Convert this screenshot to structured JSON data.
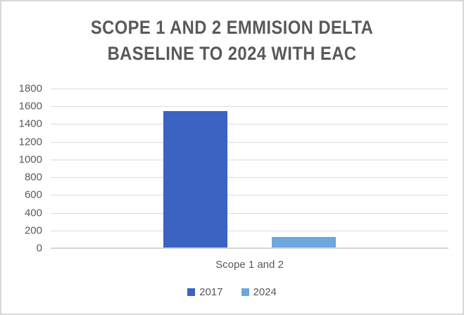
{
  "chart_data": {
    "type": "bar",
    "title": "SCOPE 1 AND 2 EMMISION DELTA BASELINE TO 2024 WITH EAC",
    "title_lines": [
      "SCOPE 1 AND 2 EMMISION DELTA",
      "BASELINE TO 2024 WITH EAC"
    ],
    "categories": [
      "Scope 1 and 2"
    ],
    "series": [
      {
        "name": "2017",
        "values": [
          1550
        ],
        "color": "#3A63C2"
      },
      {
        "name": "2024",
        "values": [
          130
        ],
        "color": "#6FA7DC"
      }
    ],
    "xlabel": "",
    "ylabel": "",
    "ylim": [
      0,
      1800
    ],
    "yticks": [
      1800,
      1600,
      1400,
      1200,
      1000,
      800,
      600,
      400,
      200,
      0
    ],
    "grid": true,
    "legend_position": "bottom"
  },
  "colors": {
    "title_text": "#595959",
    "axis_text": "#595959",
    "gridline": "#DBDBDB",
    "axis_line": "#D6D6D6",
    "frame_border": "#D9D9D9",
    "background": "#FFFFFF"
  }
}
